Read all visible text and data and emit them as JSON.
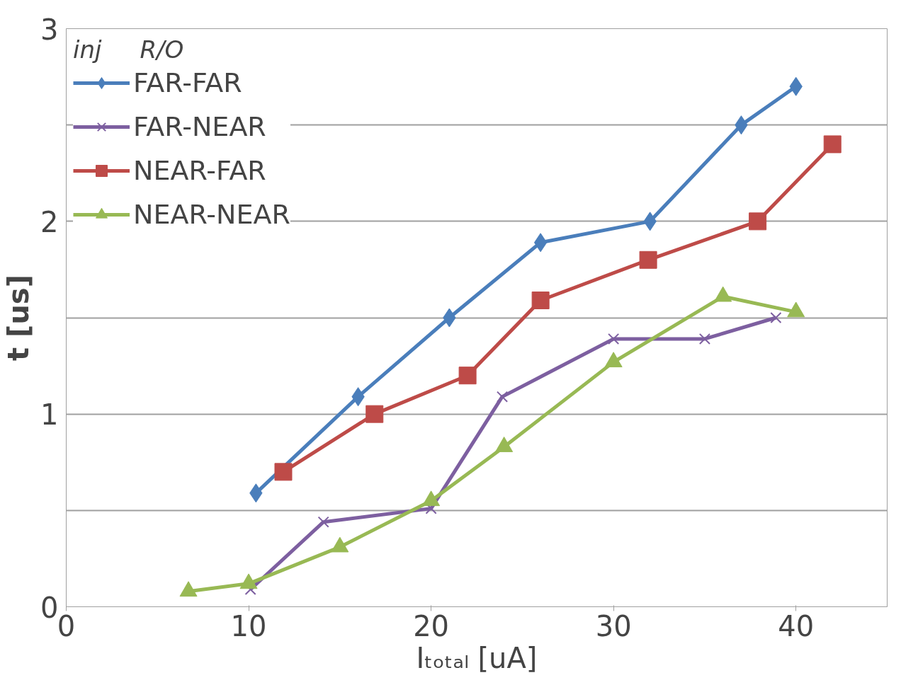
{
  "chart_data": {
    "type": "line",
    "xlabel": "Iₜₒₜₐₗ [uA]",
    "ylabel": "t [us]",
    "legend_title": "inj     R/O",
    "legend": "top left",
    "grid": "y",
    "line_style": "solid",
    "xlim": [
      0,
      45
    ],
    "xticks": [
      0,
      10,
      20,
      30,
      40
    ],
    "ylim": [
      0,
      3
    ],
    "yticks": [
      0,
      {
        "value": 0.5,
        "label": null
      },
      1,
      {
        "value": 1.5,
        "label": null
      },
      2,
      {
        "value": 2.5,
        "label": null
      },
      3
    ],
    "series": [
      {
        "name": "FAR-FAR",
        "color": "#4a7ebb",
        "marker": "diamond",
        "x": [
          10.4,
          16,
          21,
          26,
          32,
          37,
          40
        ],
        "values": [
          0.59,
          1.09,
          1.5,
          1.89,
          2.0,
          2.5,
          2.7
        ]
      },
      {
        "name": "FAR-NEAR",
        "color": "#7d5fa0",
        "marker": "cross",
        "x": [
          10.1,
          14.1,
          20,
          23.9,
          30,
          35,
          38.9
        ],
        "values": [
          0.09,
          0.44,
          0.51,
          1.09,
          1.39,
          1.39,
          1.5
        ]
      },
      {
        "name": "NEAR-FAR",
        "color": "#be4b48",
        "marker": "square",
        "x": [
          11.9,
          16.9,
          22,
          26,
          31.9,
          37.9,
          42
        ],
        "values": [
          0.7,
          1.0,
          1.2,
          1.59,
          1.8,
          2.0,
          2.4
        ]
      },
      {
        "name": "NEAR-NEAR",
        "color": "#98b954",
        "marker": "triangle",
        "x": [
          6.7,
          10,
          15,
          20,
          24,
          30,
          36,
          40
        ],
        "values": [
          0.08,
          0.12,
          0.31,
          0.55,
          0.83,
          1.27,
          1.61,
          1.53
        ]
      }
    ]
  }
}
